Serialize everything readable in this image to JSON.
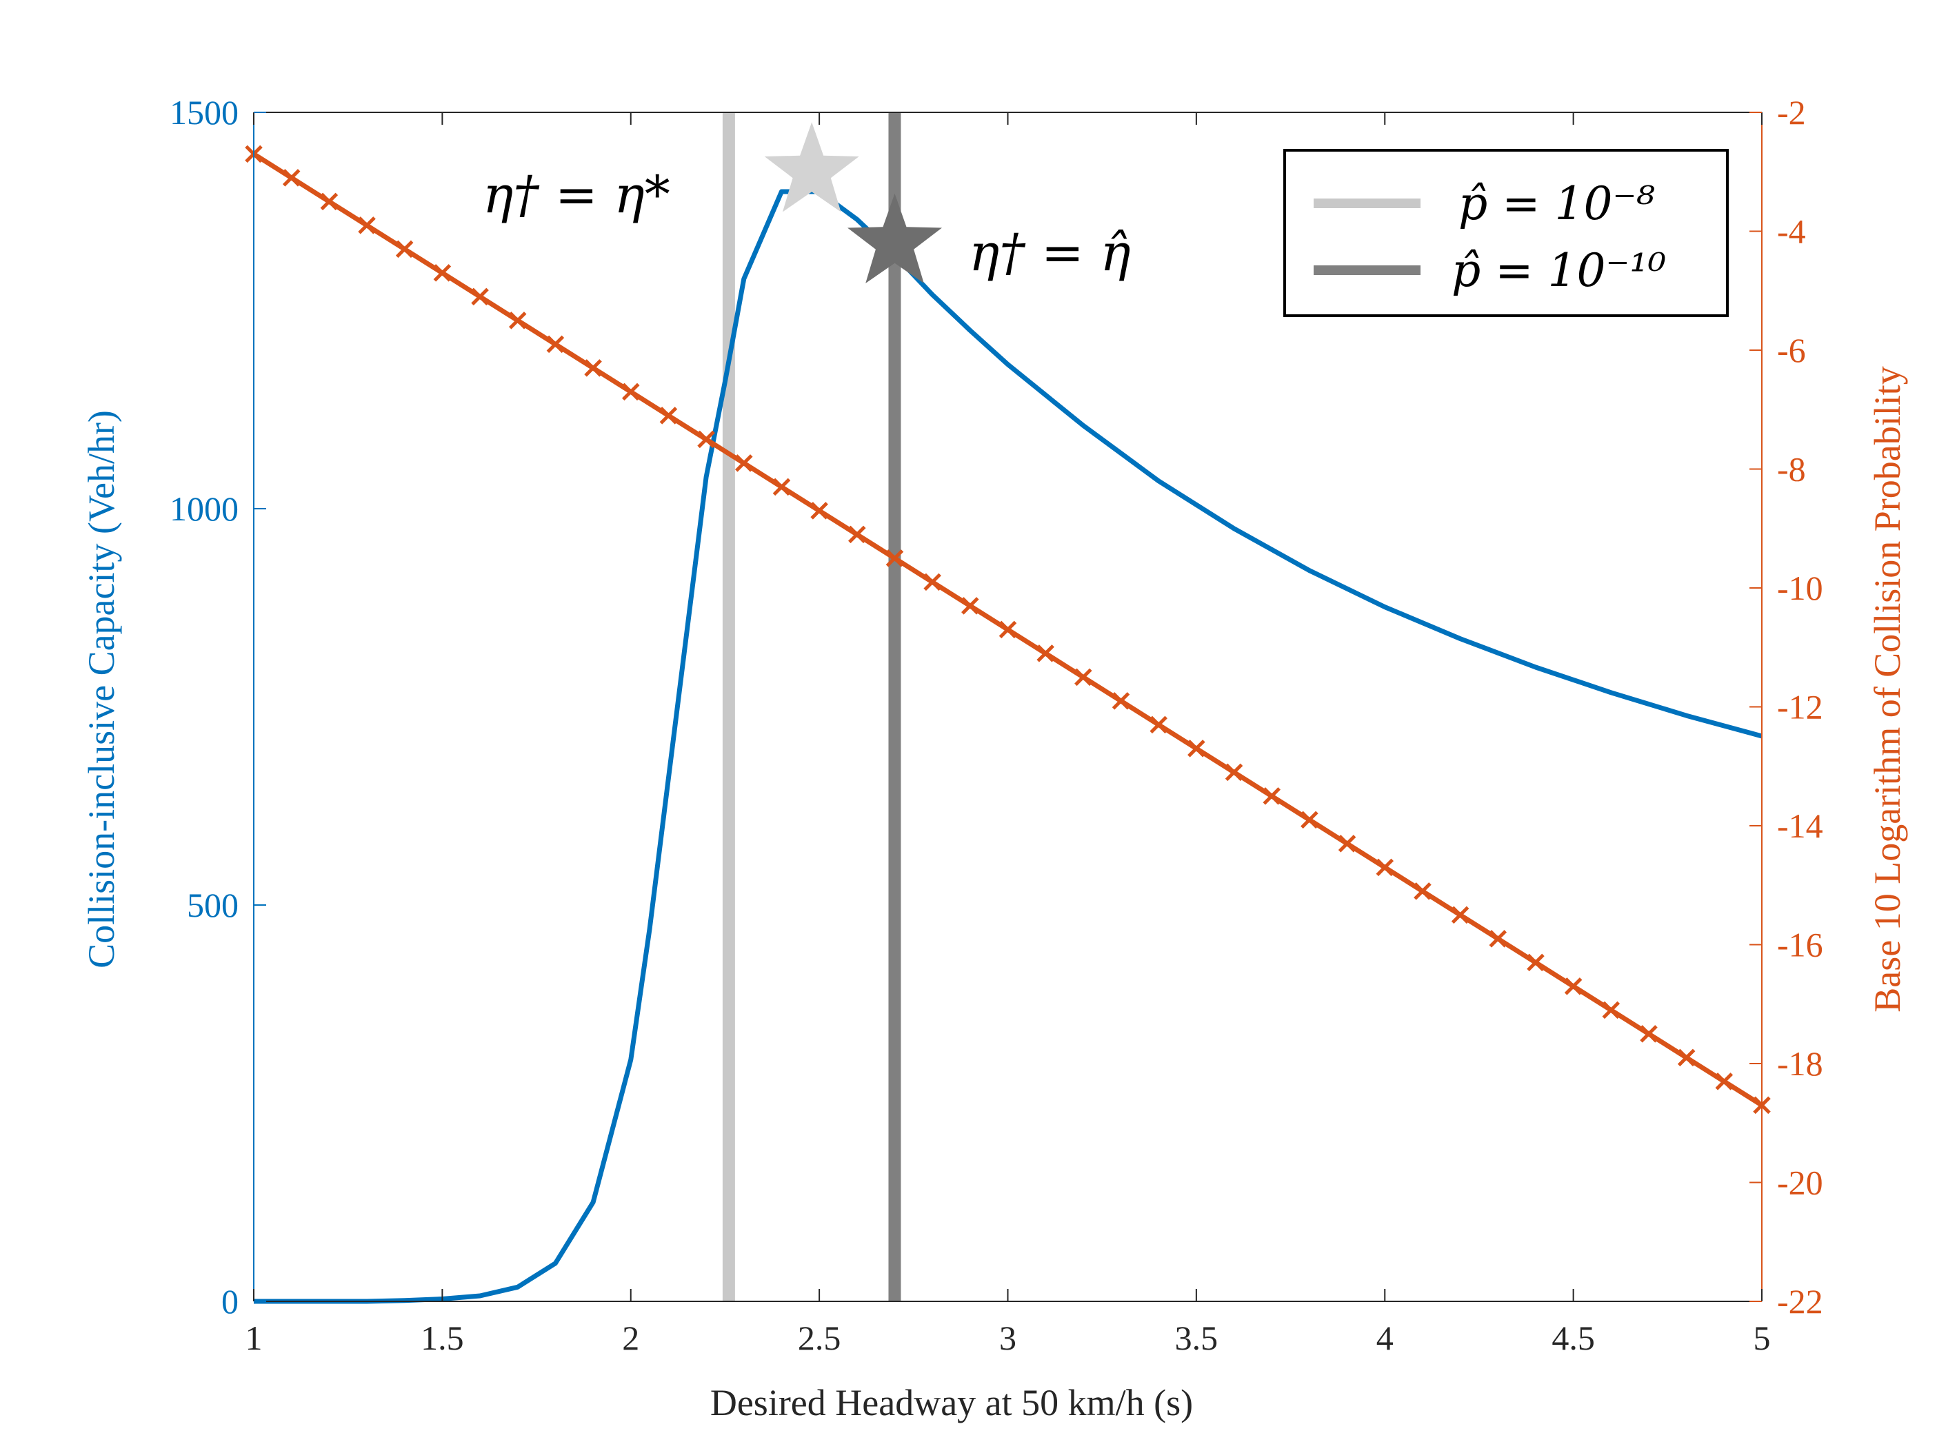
{
  "colors": {
    "left_axis": "#0072BD",
    "right_axis": "#D95319",
    "light_gray": "#C8C8C8",
    "dark_gray": "#808080",
    "frame": "#262626"
  },
  "chart_data": {
    "type": "line",
    "xlabel": "Desired Headway at 50 km/h (s)",
    "ylabel_left": "Collision-inclusive Capacity (Veh/hr)",
    "ylabel_right": "Base 10 Logarithm of Collision Probability",
    "xlim": [
      1,
      5
    ],
    "ylim_left": [
      0,
      1500
    ],
    "ylim_right": [
      -22,
      -2
    ],
    "x_ticks": [
      "1",
      "1.5",
      "2",
      "2.5",
      "3",
      "3.5",
      "4",
      "4.5",
      "5"
    ],
    "y_left_ticks": [
      "0",
      "500",
      "1000",
      "1500"
    ],
    "y_right_ticks": [
      "-2",
      "-4",
      "-6",
      "-8",
      "-10",
      "-12",
      "-14",
      "-16",
      "-18",
      "-20",
      "-22"
    ],
    "series": [
      {
        "axis": "left",
        "color": "#0072BD",
        "x": [
          1.0,
          1.1,
          1.2,
          1.3,
          1.4,
          1.5,
          1.6,
          1.7,
          1.8,
          1.9,
          2.0,
          2.05,
          2.1,
          2.15,
          2.2,
          2.25,
          2.3,
          2.4,
          2.5,
          2.6,
          2.7,
          2.8,
          2.9,
          3.0,
          3.2,
          3.4,
          3.6,
          3.8,
          4.0,
          4.2,
          4.4,
          4.6,
          4.8,
          5.0
        ],
        "values": [
          0,
          0,
          0,
          0,
          1,
          3,
          7,
          18,
          48,
          125,
          305,
          470,
          660,
          850,
          1040,
          1160,
          1290,
          1400,
          1400,
          1365,
          1320,
          1270,
          1225,
          1182,
          1105,
          1035,
          975,
          922,
          876,
          836,
          800,
          768,
          739,
          713
        ]
      },
      {
        "axis": "right",
        "color": "#D95319",
        "marker": "x",
        "x": [
          1.0,
          1.1,
          1.2,
          1.3,
          1.4,
          1.5,
          1.6,
          1.7,
          1.8,
          1.9,
          2.0,
          2.1,
          2.2,
          2.3,
          2.4,
          2.5,
          2.6,
          2.7,
          2.8,
          2.9,
          3.0,
          3.1,
          3.2,
          3.3,
          3.4,
          3.5,
          3.6,
          3.7,
          3.8,
          3.9,
          4.0,
          4.1,
          4.2,
          4.3,
          4.4,
          4.5,
          4.6,
          4.7,
          4.8,
          4.9,
          5.0
        ],
        "values": [
          -2.7,
          -3.1,
          -3.5,
          -3.9,
          -4.3,
          -4.7,
          -5.1,
          -5.5,
          -5.9,
          -6.3,
          -6.7,
          -7.1,
          -7.5,
          -7.9,
          -8.3,
          -8.7,
          -9.1,
          -9.5,
          -9.9,
          -10.3,
          -10.7,
          -11.1,
          -11.5,
          -11.9,
          -12.3,
          -12.7,
          -13.1,
          -13.5,
          -13.9,
          -14.3,
          -14.7,
          -15.1,
          -15.5,
          -15.9,
          -16.3,
          -16.7,
          -17.1,
          -17.5,
          -17.9,
          -18.3,
          -18.7
        ]
      }
    ],
    "vlines": [
      {
        "x": 2.26,
        "color": "#C8C8C8",
        "name": "p̂ = 10⁻⁸"
      },
      {
        "x": 2.7,
        "color": "#808080",
        "name": "p̂ = 10⁻¹⁰"
      }
    ],
    "stars": [
      {
        "x": 2.48,
        "y": 1425,
        "color": "#D3D3D3"
      },
      {
        "x": 2.7,
        "y": 1335,
        "color": "#6E6E6E"
      }
    ],
    "annotations": [
      {
        "text": "η† = η*",
        "x": 1.62,
        "y": 1390
      },
      {
        "text": "η† = η̂",
        "x": 3.2,
        "y": 1310
      }
    ],
    "legend": {
      "position": "top-right",
      "entries": [
        "p̂ = 10⁻⁸",
        "p̂ = 10⁻¹⁰"
      ]
    }
  }
}
